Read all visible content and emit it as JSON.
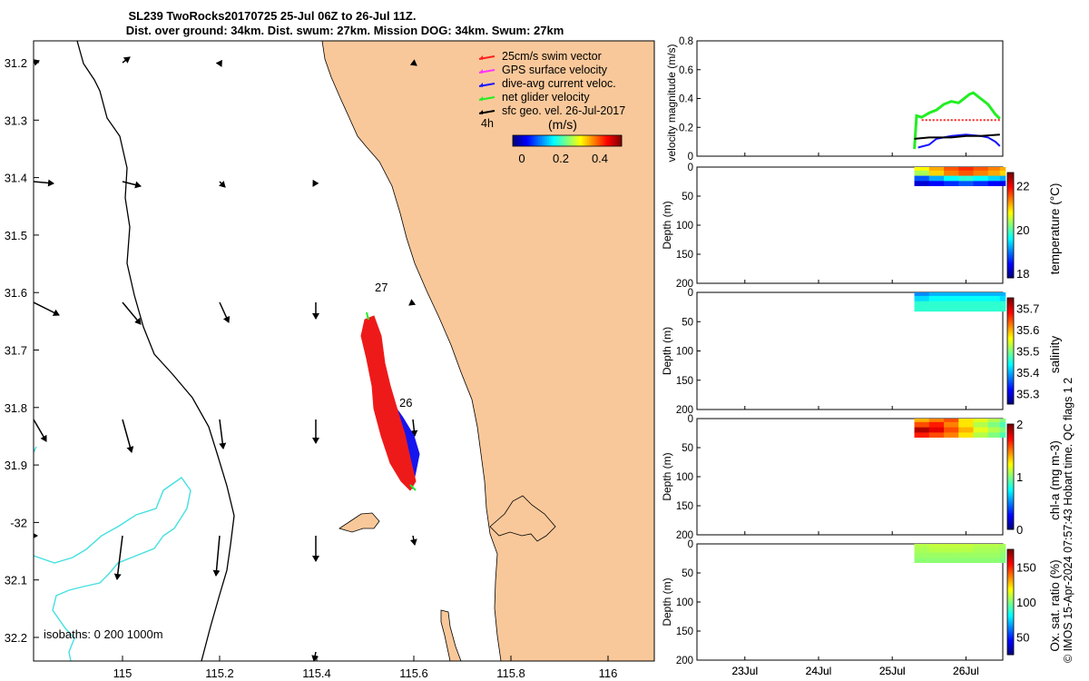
{
  "title_line1": "SL239 TwoRocks20170725 25-Jul 06Z to 26-Jul 11Z.",
  "title_line2": "Dist. over ground: 34km. Dist. swum: 27km. Mission DOG: 34km. Swum: 27km",
  "credit": "© IMOS 15-Apr-2024 07:57:43 Hobart time. QC flags 1  2",
  "map": {
    "lat_ticks": [
      "31.2",
      "31.3",
      "31.4",
      "31.5",
      "31.6",
      "31.7",
      "31.8",
      "31.9",
      "-32",
      "32.1",
      "32.2"
    ],
    "lon_ticks": [
      "115",
      "115.2",
      "115.4",
      "115.6",
      "115.8",
      "116"
    ],
    "isobath_label": "isobaths: 0   200  1000m",
    "day_labels": [
      "27",
      "26"
    ],
    "scale_label": "4h",
    "colors": {
      "land": "#f9c89a",
      "isobath_200": "#45e0e0",
      "swim": "#ff1a1a",
      "current": "#1010ee",
      "net": "#22ee22"
    },
    "legend": [
      {
        "label": "25cm/s swim vector",
        "color": "#ff2020"
      },
      {
        "label": "GPS surface velocity",
        "color": "#ff33ff"
      },
      {
        "label": "dive-avg current veloc.",
        "color": "#1515ff"
      },
      {
        "label": "net glider velocity",
        "color": "#22ee22"
      },
      {
        "label": "sfc geo. vel. 26-Jul-2017",
        "color": "#000000"
      }
    ],
    "colorbar_title": "(m/s)",
    "colorbar_ticks": [
      "0",
      "0.2",
      "0.4"
    ]
  },
  "chart_data": [
    {
      "type": "line",
      "ylabel": "velocity magnitude (m/s)",
      "ylim": [
        0,
        0.8
      ],
      "y_ticks": [
        "0",
        "0.2",
        "0.4",
        "0.6",
        "0.8"
      ],
      "x_ticks": [
        "23Jul",
        "24Jul",
        "25Jul",
        "26Jul"
      ],
      "series": [
        {
          "name": "net glider velocity",
          "color": "#22ee22",
          "x": [
            25.3,
            25.33,
            25.4,
            25.5,
            25.6,
            25.7,
            25.8,
            25.9,
            26.0,
            26.05,
            26.1,
            26.2,
            26.3,
            26.4,
            26.46
          ],
          "y": [
            0.05,
            0.28,
            0.27,
            0.3,
            0.32,
            0.36,
            0.38,
            0.37,
            0.41,
            0.43,
            0.44,
            0.4,
            0.36,
            0.29,
            0.26
          ]
        },
        {
          "name": "swim vector",
          "color": "#ff2020",
          "x": [
            25.4,
            25.6,
            25.8,
            26.0,
            26.2,
            26.4,
            26.46
          ],
          "y": [
            0.25,
            0.25,
            0.25,
            0.25,
            0.25,
            0.25,
            0.25
          ]
        },
        {
          "name": "dive-avg current veloc.",
          "color": "#1515ff",
          "x": [
            25.35,
            25.5,
            25.6,
            25.8,
            26.0,
            26.2,
            26.3,
            26.4,
            26.46
          ],
          "y": [
            0.06,
            0.08,
            0.12,
            0.14,
            0.15,
            0.14,
            0.13,
            0.1,
            0.07
          ]
        },
        {
          "name": "sfc geo. vel.",
          "color": "#000000",
          "x": [
            25.3,
            25.5,
            25.8,
            26.0,
            26.2,
            26.46
          ],
          "y": [
            0.12,
            0.13,
            0.13,
            0.14,
            0.14,
            0.15
          ]
        }
      ]
    },
    {
      "type": "heatmap",
      "ylabel": "Depth (m)",
      "variable": "temperature (°C)",
      "ylim": [
        200,
        0
      ],
      "y_ticks": [
        "0",
        "50",
        "100",
        "150",
        "200"
      ],
      "cbar_ticks": [
        "18",
        "20",
        "22"
      ],
      "cbar_range": [
        17.8,
        22.6
      ],
      "x": [
        25.3,
        25.5,
        25.7,
        25.9,
        26.1,
        26.3,
        26.46
      ],
      "depth": [
        2,
        10,
        20,
        28
      ],
      "values": [
        [
          20.8,
          21.2,
          21.6,
          21.8,
          21.6,
          21.4,
          21.2
        ],
        [
          20.4,
          21.0,
          21.4,
          21.6,
          21.4,
          21.2,
          21.0
        ],
        [
          18.8,
          19.2,
          19.6,
          19.8,
          19.6,
          19.4,
          19.2
        ],
        [
          18.2,
          18.4,
          18.6,
          18.8,
          18.6,
          18.4,
          18.3
        ]
      ]
    },
    {
      "type": "heatmap",
      "ylabel": "Depth (m)",
      "variable": "salinity",
      "ylim": [
        200,
        0
      ],
      "y_ticks": [
        "0",
        "50",
        "100",
        "150",
        "200"
      ],
      "cbar_ticks": [
        "35.3",
        "35.4",
        "35.5",
        "35.6",
        "35.7"
      ],
      "cbar_range": [
        35.25,
        35.75
      ],
      "x": [
        25.3,
        25.5,
        25.7,
        25.9,
        26.1,
        26.3,
        26.46
      ],
      "depth": [
        2,
        10,
        20,
        28
      ],
      "values": [
        [
          35.38,
          35.4,
          35.4,
          35.4,
          35.4,
          35.4,
          35.4
        ],
        [
          35.42,
          35.44,
          35.44,
          35.44,
          35.44,
          35.44,
          35.42
        ],
        [
          35.46,
          35.46,
          35.46,
          35.46,
          35.46,
          35.46,
          35.46
        ],
        [
          35.46,
          35.46,
          35.46,
          35.46,
          35.46,
          35.46,
          35.46
        ]
      ]
    },
    {
      "type": "heatmap",
      "ylabel": "Depth (m)",
      "variable": "chl-a (mg m-3)",
      "ylim": [
        200,
        0
      ],
      "y_ticks": [
        "0",
        "50",
        "100",
        "150",
        "200"
      ],
      "cbar_ticks": [
        "0",
        "1",
        "2"
      ],
      "cbar_range": [
        0,
        2
      ],
      "x": [
        25.3,
        25.5,
        25.7,
        25.9,
        26.1,
        26.3,
        26.46
      ],
      "depth": [
        2,
        10,
        20,
        28
      ],
      "values": [
        [
          1.4,
          1.5,
          1.6,
          1.3,
          1.2,
          1.1,
          1.0
        ],
        [
          1.6,
          1.7,
          1.5,
          1.3,
          1.1,
          1.0,
          0.9
        ],
        [
          1.9,
          1.8,
          1.6,
          1.4,
          1.2,
          1.1,
          1.0
        ],
        [
          1.7,
          1.6,
          1.5,
          1.3,
          1.1,
          1.0,
          0.9
        ]
      ]
    },
    {
      "type": "heatmap",
      "ylabel": "Depth (m)",
      "variable": "Ox. sat. ratio (%)",
      "ylim": [
        200,
        0
      ],
      "y_ticks": [
        "0",
        "50",
        "100",
        "150",
        "200"
      ],
      "x_ticks": [
        "23Jul",
        "24Jul",
        "25Jul",
        "26Jul"
      ],
      "cbar_ticks": [
        "50",
        "100",
        "150"
      ],
      "cbar_range": [
        25,
        175
      ],
      "x": [
        25.3,
        25.5,
        25.7,
        25.9,
        26.1,
        26.3,
        26.46
      ],
      "depth": [
        2,
        10,
        20,
        28
      ],
      "values": [
        [
          108,
          110,
          110,
          110,
          108,
          108,
          106
        ],
        [
          106,
          108,
          108,
          108,
          106,
          106,
          104
        ],
        [
          104,
          104,
          104,
          104,
          104,
          104,
          102
        ],
        [
          102,
          102,
          102,
          102,
          102,
          102,
          100
        ]
      ]
    }
  ]
}
